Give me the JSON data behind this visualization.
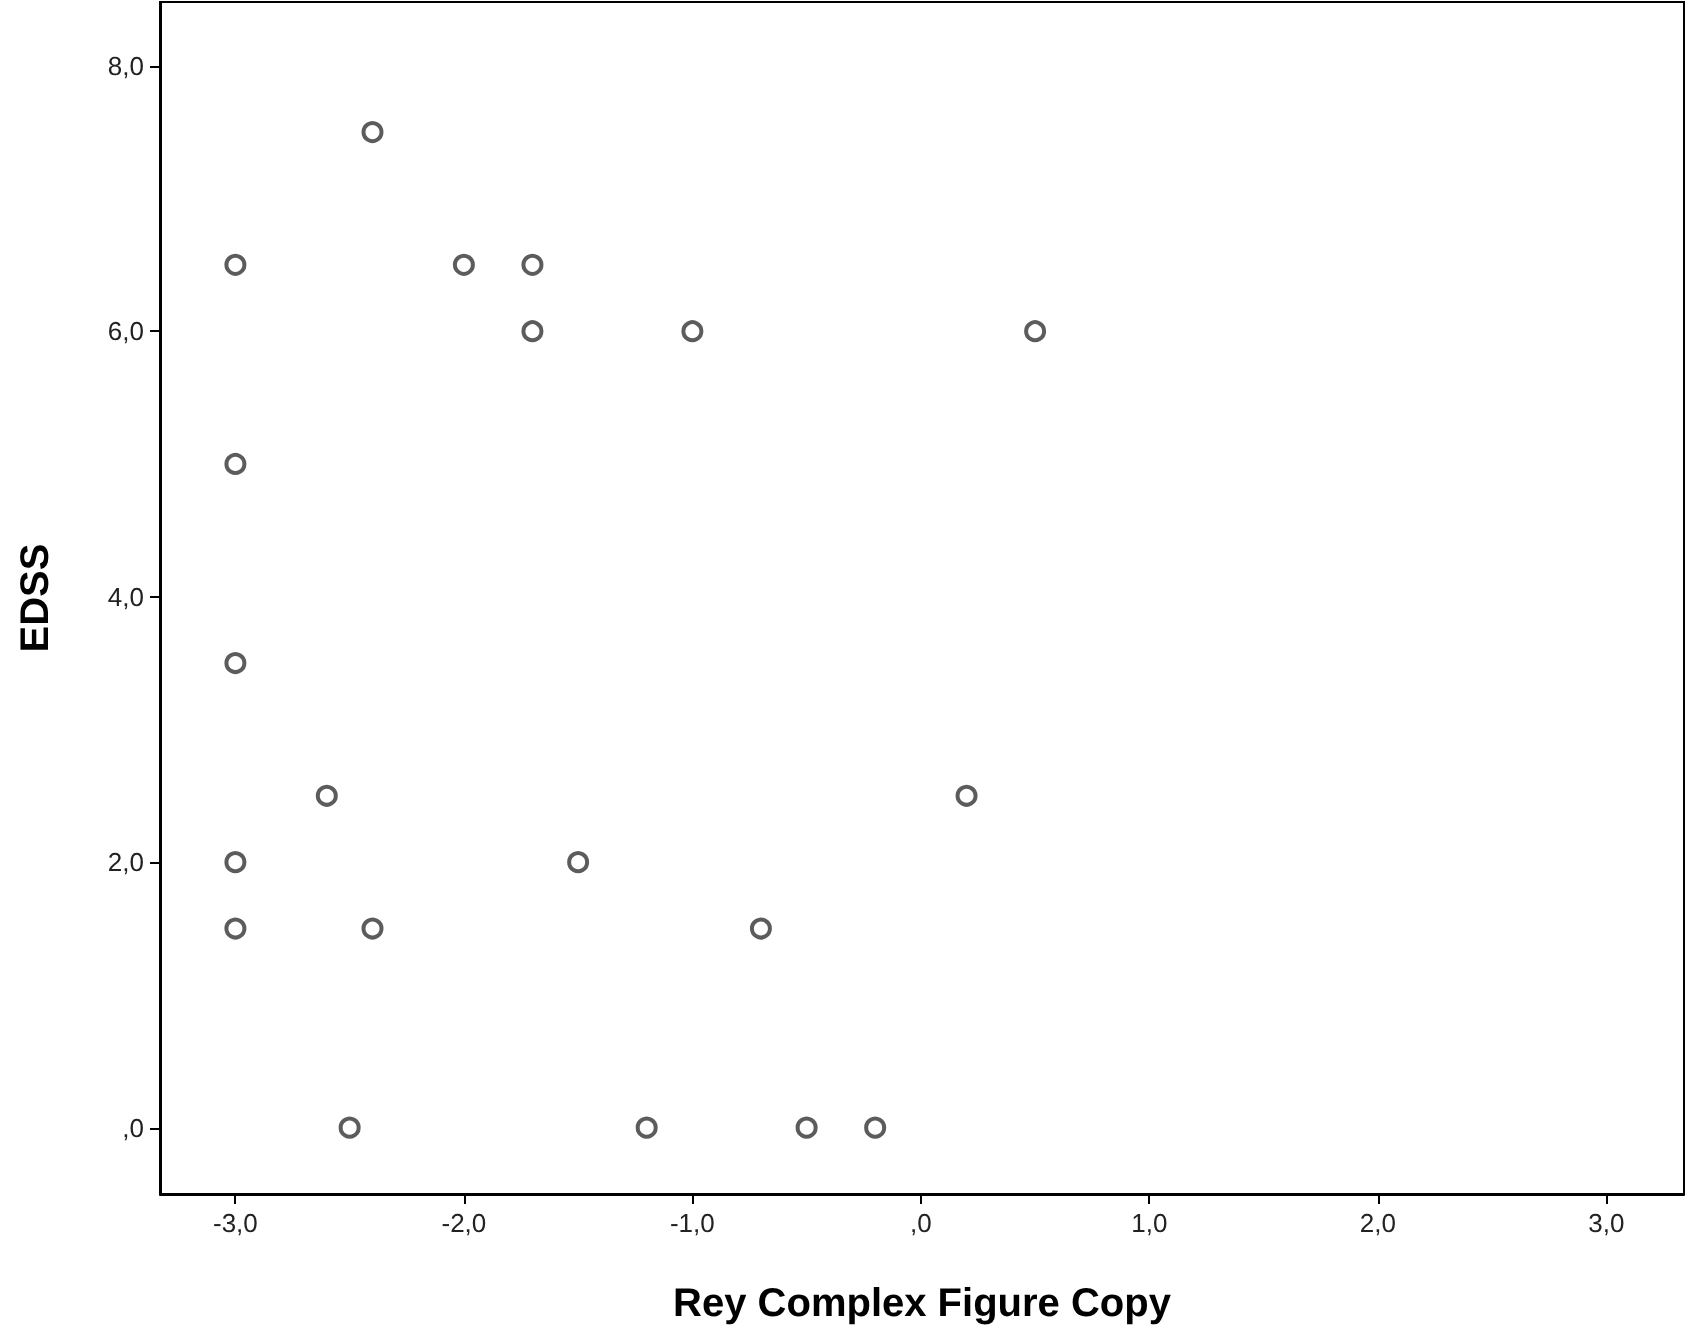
{
  "chart_data": {
    "type": "scatter",
    "xlabel": "Rey Complex Figure Copy",
    "ylabel": "EDSS",
    "x": [
      -2.4,
      -3,
      -2,
      -1.7,
      -1.7,
      -1,
      0.5,
      -3,
      -3,
      -2.6,
      0.2,
      -3,
      -1.5,
      -3,
      -2.4,
      -0.7,
      -2.5,
      -1.2,
      -0.5,
      -0.2
    ],
    "values": [
      7.5,
      6.5,
      6.5,
      6.5,
      6,
      6,
      6,
      5,
      3.5,
      2.5,
      2.5,
      2,
      2,
      1.5,
      1.5,
      1.5,
      0,
      0,
      0,
      0
    ],
    "color": "#333333",
    "marker": "circle",
    "grid": false,
    "xlim": [
      -3.33,
      3.34
    ],
    "ylim": [
      -0.5,
      8.48
    ],
    "xticks": [
      {
        "value": -3,
        "label": "-3,0"
      },
      {
        "value": -2,
        "label": "-2,0"
      },
      {
        "value": -1,
        "label": "-1,0"
      },
      {
        "value": 0,
        "label": ",0"
      },
      {
        "value": 1,
        "label": "1,0"
      },
      {
        "value": 2,
        "label": "2,0"
      },
      {
        "value": 3,
        "label": "3,0"
      }
    ],
    "yticks": [
      {
        "value": 0,
        "label": ",0"
      },
      {
        "value": 2,
        "label": "2,0"
      },
      {
        "value": 4,
        "label": "4,0"
      },
      {
        "value": 6,
        "label": "6,0"
      },
      {
        "value": 8,
        "label": "8,0"
      }
    ]
  }
}
